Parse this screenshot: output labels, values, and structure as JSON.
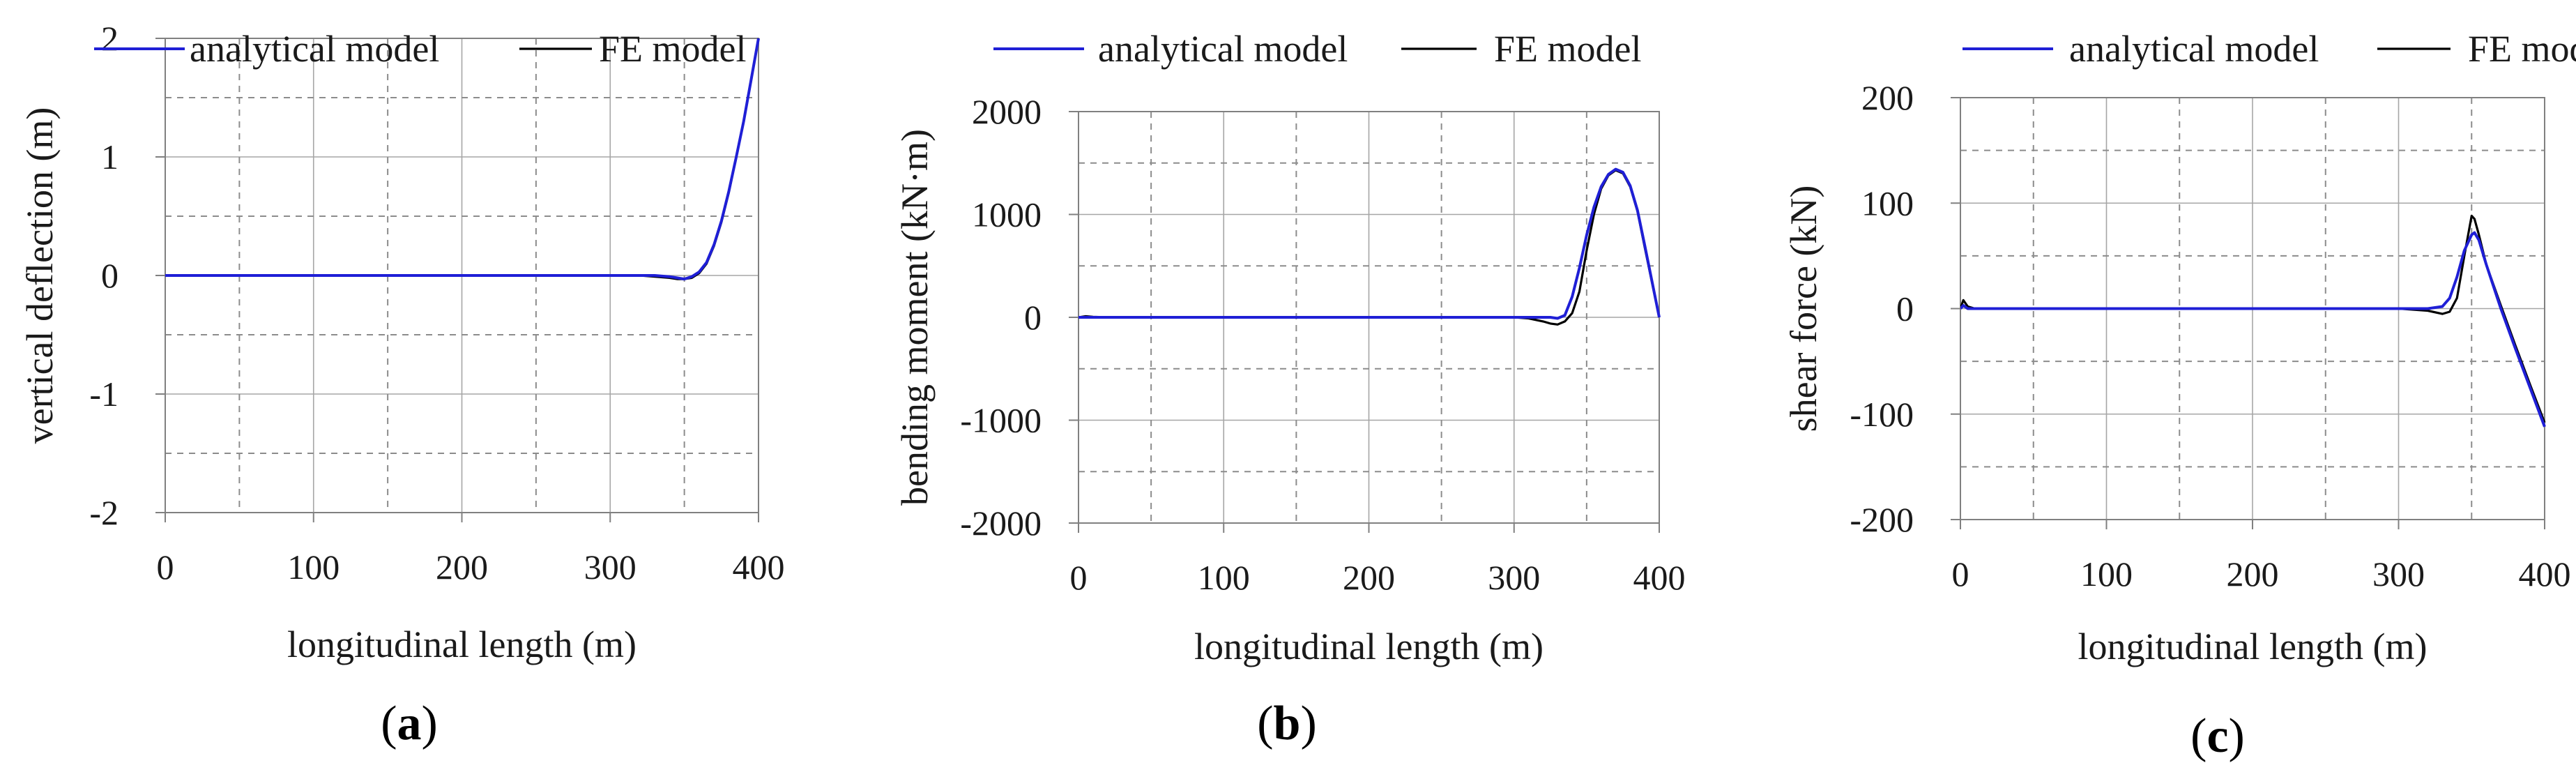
{
  "chart_data": [
    {
      "type": "line",
      "panel": "a",
      "caption": {
        "open": "(",
        "letter": "a",
        "close": ")"
      },
      "xlabel": "longitudinal length (m)",
      "ylabel": "vertical deflection (m)",
      "xlim": [
        0,
        400
      ],
      "ylim": [
        -2,
        2
      ],
      "xticks": [
        0,
        100,
        200,
        300,
        400
      ],
      "yticks": [
        -2,
        -1,
        0,
        1,
        2
      ],
      "ytick_labels": [
        "-2",
        "-1",
        "0",
        "1",
        "2"
      ],
      "grid_dashed_y": [
        -1.5,
        -0.5,
        0.5,
        1.5
      ],
      "grid_minor_x": [
        50,
        150,
        250,
        350
      ],
      "legend": [
        "analytical model",
        "FE model"
      ],
      "series": [
        {
          "name": "FE model",
          "color": "#000000",
          "x": [
            0,
            50,
            100,
            150,
            200,
            250,
            300,
            320,
            330,
            340,
            345,
            350,
            355,
            360,
            365,
            370,
            375,
            380,
            385,
            390,
            395,
            400
          ],
          "y": [
            0,
            0,
            0,
            0,
            0,
            0,
            0,
            0,
            -0.01,
            -0.02,
            -0.03,
            -0.03,
            -0.02,
            0.02,
            0.1,
            0.25,
            0.45,
            0.7,
            1.0,
            1.3,
            1.65,
            2.0
          ]
        },
        {
          "name": "analytical model",
          "color": "#1f1fd6",
          "x": [
            0,
            50,
            100,
            150,
            200,
            250,
            300,
            320,
            330,
            340,
            345,
            350,
            355,
            360,
            365,
            370,
            375,
            380,
            385,
            390,
            395,
            400
          ],
          "y": [
            0,
            0,
            0,
            0,
            0,
            0,
            0,
            0,
            0,
            -0.01,
            -0.02,
            -0.03,
            -0.01,
            0.03,
            0.11,
            0.26,
            0.46,
            0.71,
            1.0,
            1.3,
            1.65,
            2.0
          ]
        }
      ]
    },
    {
      "type": "line",
      "panel": "b",
      "caption": {
        "open": "(",
        "letter": "b",
        "close": ")"
      },
      "xlabel": "longitudinal length (m)",
      "ylabel": "bending moment (kN·m)",
      "xlim": [
        0,
        400
      ],
      "ylim": [
        -2000,
        2000
      ],
      "xticks": [
        0,
        100,
        200,
        300,
        400
      ],
      "yticks": [
        -2000,
        -1000,
        0,
        1000,
        2000
      ],
      "ytick_labels": [
        "-2000",
        "-1000",
        "0",
        "1000",
        "2000"
      ],
      "grid_dashed_y": [
        -1500,
        -500,
        500,
        1500
      ],
      "grid_minor_x": [
        50,
        150,
        250,
        350
      ],
      "legend": [
        "analytical model",
        "FE model"
      ],
      "series": [
        {
          "name": "FE model",
          "color": "#000000",
          "x": [
            0,
            5,
            10,
            20,
            50,
            100,
            200,
            300,
            310,
            320,
            325,
            330,
            335,
            340,
            345,
            350,
            355,
            360,
            365,
            370,
            375,
            380,
            385,
            390,
            395,
            400
          ],
          "y": [
            0,
            10,
            5,
            0,
            0,
            0,
            0,
            0,
            -10,
            -40,
            -60,
            -70,
            -40,
            40,
            250,
            650,
            1000,
            1250,
            1380,
            1430,
            1400,
            1270,
            1030,
            680,
            340,
            0
          ]
        },
        {
          "name": "analytical model",
          "color": "#1f1fd6",
          "x": [
            0,
            5,
            10,
            20,
            50,
            100,
            200,
            300,
            310,
            320,
            325,
            330,
            335,
            340,
            345,
            350,
            355,
            360,
            365,
            370,
            375,
            380,
            385,
            390,
            395,
            400
          ],
          "y": [
            0,
            0,
            0,
            0,
            0,
            0,
            0,
            0,
            0,
            0,
            0,
            -10,
            20,
            200,
            480,
            800,
            1070,
            1270,
            1390,
            1440,
            1410,
            1280,
            1040,
            700,
            350,
            0
          ]
        }
      ]
    },
    {
      "type": "line",
      "panel": "c",
      "caption": {
        "open": "(",
        "letter": "c",
        "close": ")"
      },
      "xlabel": "longitudinal length (m)",
      "ylabel": "shear force (kN)",
      "xlim": [
        0,
        400
      ],
      "ylim": [
        -200,
        200
      ],
      "xticks": [
        0,
        100,
        200,
        300,
        400
      ],
      "yticks": [
        -200,
        -100,
        0,
        100,
        200
      ],
      "ytick_labels": [
        "-200",
        "-100",
        "0",
        "100",
        "200"
      ],
      "grid_dashed_y": [
        -150,
        -50,
        50,
        150
      ],
      "grid_minor_x": [
        50,
        150,
        250,
        350
      ],
      "legend": [
        "analytical model",
        "FE model"
      ],
      "series": [
        {
          "name": "FE model",
          "color": "#000000",
          "x": [
            0,
            2,
            5,
            10,
            20,
            50,
            100,
            200,
            300,
            320,
            330,
            335,
            340,
            345,
            350,
            352,
            355,
            360,
            370,
            380,
            390,
            400
          ],
          "y": [
            0,
            8,
            2,
            0,
            0,
            0,
            0,
            0,
            0,
            -2,
            -5,
            -3,
            10,
            50,
            88,
            85,
            70,
            42,
            3,
            -35,
            -72,
            -108
          ]
        },
        {
          "name": "analytical model",
          "color": "#1f1fd6",
          "x": [
            0,
            2,
            5,
            10,
            20,
            50,
            100,
            200,
            300,
            320,
            330,
            335,
            340,
            345,
            350,
            352,
            355,
            360,
            370,
            380,
            390,
            400
          ],
          "y": [
            0,
            3,
            0,
            0,
            0,
            0,
            0,
            0,
            0,
            0,
            2,
            10,
            30,
            55,
            70,
            72,
            65,
            42,
            0,
            -38,
            -75,
            -112
          ]
        }
      ]
    }
  ]
}
